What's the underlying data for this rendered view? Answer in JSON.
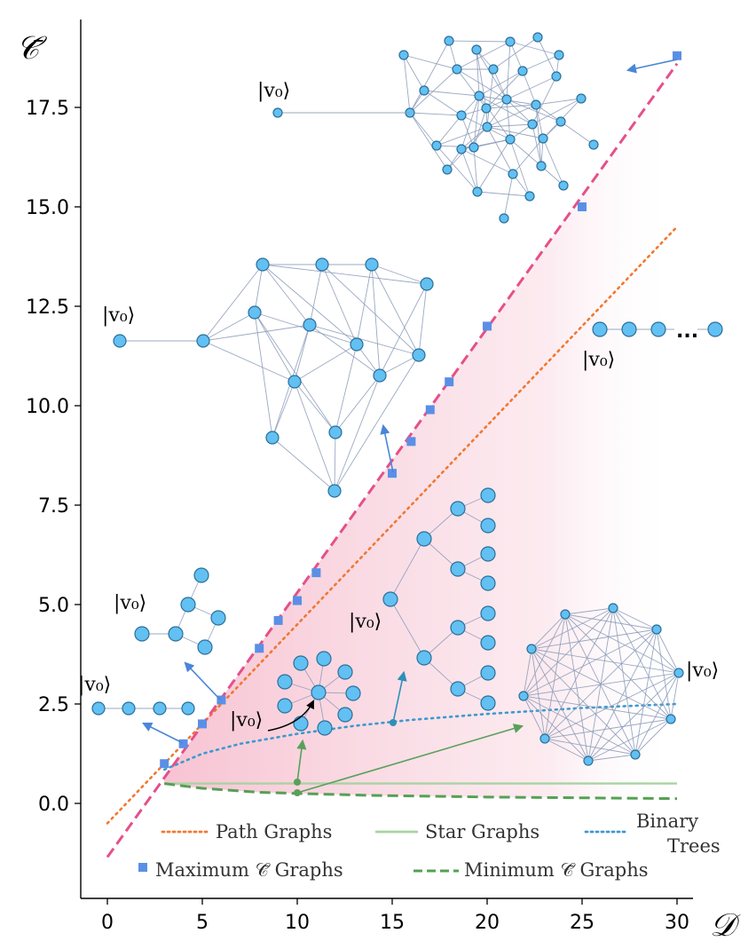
{
  "chart_data": {
    "type": "line",
    "xlabel": "𝒟",
    "ylabel": "𝒞̄",
    "xlim": [
      -1.5,
      31.5
    ],
    "ylim": [
      -2.3,
      19.5
    ],
    "x_ticks": [
      "0",
      "5",
      "10",
      "15",
      "20",
      "25",
      "30"
    ],
    "y_ticks": [
      "0.0",
      "2.5",
      "5.0",
      "7.5",
      "10.0",
      "12.5",
      "15.0",
      "17.5"
    ],
    "x_tick_values": [
      0,
      5,
      10,
      15,
      20,
      25,
      30
    ],
    "y_tick_values": [
      0.0,
      2.5,
      5.0,
      7.5,
      10.0,
      12.5,
      15.0,
      17.5
    ],
    "series": [
      {
        "name": "Path Graphs",
        "style": "dotted",
        "color": "#f07830",
        "x": [
          0,
          30
        ],
        "y": [
          -0.5,
          14.5
        ]
      },
      {
        "name": "Star Graphs",
        "style": "solid",
        "color": "#a8d4a0",
        "x": [
          3,
          30
        ],
        "y": [
          0.5,
          0.5
        ]
      },
      {
        "name": "Binary Trees",
        "style": "dotted",
        "color": "#3a9ad0",
        "x": [
          3,
          5,
          7,
          10,
          13,
          16,
          20,
          25,
          30
        ],
        "y": [
          0.85,
          1.25,
          1.5,
          1.75,
          1.95,
          2.1,
          2.25,
          2.4,
          2.5
        ]
      },
      {
        "name": "Maximum 𝒞̄ Graphs",
        "style": "markers",
        "color": "#5b8fe6",
        "x": [
          3,
          4,
          5,
          6,
          8,
          9,
          10,
          11,
          15,
          16,
          17,
          18,
          20,
          25,
          30
        ],
        "y": [
          1.0,
          1.5,
          2.0,
          2.6,
          3.9,
          4.6,
          5.1,
          5.8,
          8.3,
          9.1,
          9.9,
          10.6,
          12.0,
          15.0,
          18.8
        ]
      },
      {
        "name": "Minimum 𝒞̄ Graphs",
        "style": "dashed",
        "color": "#55a055",
        "x": [
          3,
          5,
          8,
          10,
          14,
          20,
          25,
          30
        ],
        "y": [
          0.5,
          0.38,
          0.28,
          0.25,
          0.2,
          0.16,
          0.14,
          0.12
        ]
      },
      {
        "name": "",
        "style": "dashed",
        "color": "#e5508a",
        "x": [
          0,
          30
        ],
        "y": [
          -1.35,
          18.6
        ]
      }
    ],
    "legend": [
      {
        "label": "Path Graphs",
        "key": "path"
      },
      {
        "label": "Star Graphs",
        "key": "star"
      },
      {
        "label": "Binary",
        "label2": "Trees",
        "key": "binary"
      },
      {
        "label": "Maximum 𝒞̄ Graphs",
        "key": "max"
      },
      {
        "label": "Minimum 𝒞̄ Graphs",
        "key": "min"
      }
    ],
    "legend_placement": "bottom",
    "grid": false,
    "annotations": {
      "v0_label": "|v₀⟩",
      "ellipsis": "..."
    },
    "colors": {
      "path": "#f07830",
      "star": "#a8d4a0",
      "binary": "#3a9ad0",
      "max": "#5b8fe6",
      "min": "#55a055",
      "boundary": "#e5508a",
      "fill": "#f6c6d4",
      "node": "#62c0f2",
      "edge": "#8a9ab8"
    }
  }
}
